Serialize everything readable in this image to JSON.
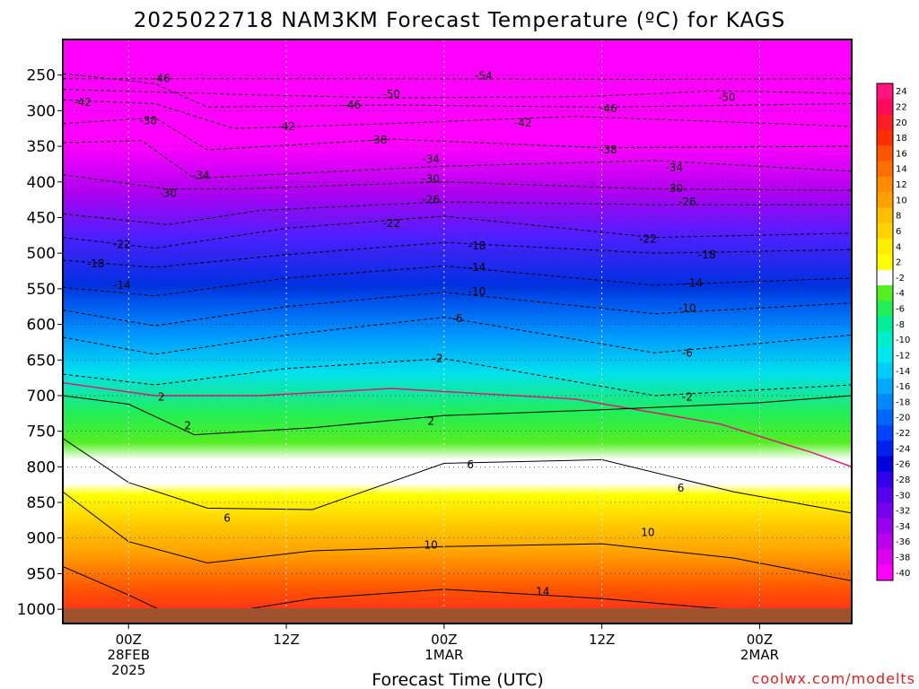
{
  "header": {
    "title": "2025022718 NAM3KM Forecast Temperature (ºC) for KAGS"
  },
  "footer": {
    "credit": "coolwx.com/modelts"
  },
  "chart_data": {
    "type": "heatmap",
    "title": "2025022718 NAM3KM Forecast Temperature (ºC) for KAGS",
    "xlabel": "Forecast Time (UTC)",
    "ylabel": "",
    "x_axis": {
      "range_hours": [
        -5,
        55
      ],
      "ticks": [
        {
          "hour": 0,
          "lines": [
            "00Z",
            "28FEB",
            "2025"
          ]
        },
        {
          "hour": 12,
          "lines": [
            "12Z"
          ]
        },
        {
          "hour": 24,
          "lines": [
            "00Z",
            "1MAR"
          ]
        },
        {
          "hour": 36,
          "lines": [
            "12Z"
          ]
        },
        {
          "hour": 48,
          "lines": [
            "00Z",
            "2MAR"
          ]
        }
      ]
    },
    "y_axis": {
      "unit": "hPa",
      "range": [
        1020,
        200
      ],
      "ticks": [
        250,
        300,
        350,
        400,
        450,
        500,
        550,
        600,
        650,
        700,
        750,
        800,
        850,
        900,
        950,
        1000
      ]
    },
    "grid": true,
    "legend": "right",
    "colorbar": {
      "labels": [
        "24",
        "22",
        "20",
        "18",
        "16",
        "14",
        "12",
        "10",
        "8",
        "6",
        "4",
        "2",
        "-2",
        "-4",
        "-6",
        "-8",
        "-10",
        "-12",
        "-14",
        "-16",
        "-18",
        "-20",
        "-22",
        "-24",
        "-26",
        "-28",
        "-30",
        "-32",
        "-34",
        "-36",
        "-38",
        "-40"
      ],
      "colors": [
        "#ff1480",
        "#ff0a5a",
        "#ff1e28",
        "#ff2d00",
        "#ff5500",
        "#ff6e00",
        "#ff8c00",
        "#ffa000",
        "#ffbe00",
        "#ffd200",
        "#ffee00",
        "#ffff00",
        "#ffffff",
        "#55ee22",
        "#22ee55",
        "#00ee99",
        "#00eecc",
        "#00e6ee",
        "#00ccff",
        "#00aaff",
        "#0088ff",
        "#0066ff",
        "#0044ff",
        "#0022ee",
        "#0000dd",
        "#3300ee",
        "#5500ee",
        "#7700ee",
        "#9900ee",
        "#bb00ee",
        "#dd00ee",
        "#ff00ff"
      ]
    },
    "contour_lines": [
      {
        "level": -54,
        "pressure": [
          255,
          255,
          256,
          255
        ],
        "hours": [
          -5,
          15,
          40,
          55
        ]
      },
      {
        "level": -50,
        "pressure": [
          270,
          278,
          282,
          280,
          272,
          276
        ],
        "hours": [
          -5,
          10,
          20,
          35,
          45,
          55
        ]
      },
      {
        "level": -46,
        "pressure": [
          248,
          262,
          295,
          292,
          295,
          290
        ],
        "hours": [
          -5,
          2,
          6,
          20,
          36,
          55
        ]
      },
      {
        "level": -42,
        "pressure": [
          285,
          290,
          325,
          318,
          308,
          322
        ],
        "hours": [
          -5,
          2,
          8,
          20,
          34,
          55
        ]
      },
      {
        "level": -38,
        "pressure": [
          318,
          310,
          355,
          340,
          352,
          350
        ],
        "hours": [
          -5,
          2,
          6,
          20,
          36,
          55
        ]
      },
      {
        "level": -34,
        "pressure": [
          345,
          342,
          395,
          378,
          370,
          385
        ],
        "hours": [
          -5,
          1,
          5,
          24,
          40,
          55
        ]
      },
      {
        "level": -30,
        "pressure": [
          390,
          410,
          410,
          400,
          410,
          412
        ],
        "hours": [
          -5,
          3,
          8,
          24,
          40,
          55
        ]
      },
      {
        "level": -26,
        "pressure": [
          445,
          460,
          440,
          428,
          432,
          432
        ],
        "hours": [
          -5,
          3,
          10,
          24,
          40,
          55
        ]
      },
      {
        "level": -22,
        "pressure": [
          478,
          493,
          465,
          448,
          478,
          472
        ],
        "hours": [
          -5,
          2,
          12,
          24,
          40,
          55
        ]
      },
      {
        "level": -18,
        "pressure": [
          510,
          520,
          502,
          485,
          500,
          495
        ],
        "hours": [
          -5,
          2,
          12,
          24,
          40,
          55
        ]
      },
      {
        "level": -14,
        "pressure": [
          548,
          560,
          535,
          518,
          545,
          535
        ],
        "hours": [
          -5,
          2,
          12,
          24,
          40,
          55
        ]
      },
      {
        "level": -10,
        "pressure": [
          580,
          602,
          575,
          555,
          585,
          570
        ],
        "hours": [
          -5,
          2,
          12,
          24,
          40,
          55
        ]
      },
      {
        "level": -6,
        "pressure": [
          618,
          642,
          615,
          590,
          640,
          615
        ],
        "hours": [
          -5,
          2,
          12,
          24,
          40,
          55
        ]
      },
      {
        "level": -2,
        "pressure": [
          670,
          685,
          662,
          648,
          700,
          685
        ],
        "hours": [
          -5,
          2,
          12,
          24,
          40,
          55
        ]
      },
      {
        "level": 0,
        "pressure": [
          682,
          700,
          700,
          690,
          705,
          740,
          780,
          800
        ],
        "hours": [
          -5,
          2,
          10,
          20,
          34,
          45,
          52,
          55
        ]
      },
      {
        "level": 2,
        "pressure": [
          700,
          712,
          755,
          745,
          728,
          720,
          710,
          700
        ],
        "hours": [
          -5,
          0,
          5,
          14,
          24,
          36,
          48,
          55
        ]
      },
      {
        "level": 6,
        "pressure": [
          760,
          822,
          858,
          860,
          795,
          790,
          835,
          865
        ],
        "hours": [
          -5,
          0,
          6,
          14,
          24,
          36,
          46,
          55
        ]
      },
      {
        "level": 10,
        "pressure": [
          835,
          905,
          935,
          918,
          912,
          908,
          928,
          960
        ],
        "hours": [
          -5,
          0,
          6,
          14,
          24,
          36,
          46,
          55
        ]
      },
      {
        "level": 14,
        "pressure": [
          940,
          980,
          1015,
          985,
          972,
          985,
          1015
        ],
        "hours": [
          -5,
          0,
          4,
          14,
          24,
          36,
          55
        ]
      }
    ],
    "contour_label_positions": [
      {
        "text": "-54",
        "hour": 27,
        "pressure": 251
      },
      {
        "text": "-50",
        "hour": 20,
        "pressure": 277
      },
      {
        "text": "-50",
        "hour": 45.5,
        "pressure": 281
      },
      {
        "text": "-46",
        "hour": 2.5,
        "pressure": 255
      },
      {
        "text": "-46",
        "hour": 17,
        "pressure": 292
      },
      {
        "text": "-46",
        "hour": 36.5,
        "pressure": 297
      },
      {
        "text": "-42",
        "hour": -3.5,
        "pressure": 288
      },
      {
        "text": "-42",
        "hour": 12,
        "pressure": 322
      },
      {
        "text": "-42",
        "hour": 30,
        "pressure": 317
      },
      {
        "text": "-38",
        "hour": 1.5,
        "pressure": 314
      },
      {
        "text": "-38",
        "hour": 19,
        "pressure": 341
      },
      {
        "text": "-38",
        "hour": 36.5,
        "pressure": 355
      },
      {
        "text": "-34",
        "hour": 5.5,
        "pressure": 391
      },
      {
        "text": "-34",
        "hour": 23,
        "pressure": 368
      },
      {
        "text": "-34",
        "hour": 41.5,
        "pressure": 380
      },
      {
        "text": "-30",
        "hour": 3,
        "pressure": 416
      },
      {
        "text": "-30",
        "hour": 23,
        "pressure": 396
      },
      {
        "text": "-30",
        "hour": 41.5,
        "pressure": 409
      },
      {
        "text": "-26",
        "hour": 23,
        "pressure": 425
      },
      {
        "text": "-26",
        "hour": 42.5,
        "pressure": 428
      },
      {
        "text": "-22",
        "hour": 20,
        "pressure": 458
      },
      {
        "text": "-22",
        "hour": -0.5,
        "pressure": 488
      },
      {
        "text": "-22",
        "hour": 39.5,
        "pressure": 480
      },
      {
        "text": "-18",
        "hour": -2.5,
        "pressure": 515
      },
      {
        "text": "-18",
        "hour": 26.5,
        "pressure": 490
      },
      {
        "text": "-18",
        "hour": 44,
        "pressure": 502
      },
      {
        "text": "-14",
        "hour": -0.5,
        "pressure": 545
      },
      {
        "text": "-14",
        "hour": 26.5,
        "pressure": 520
      },
      {
        "text": "-14",
        "hour": 43,
        "pressure": 542
      },
      {
        "text": "-10",
        "hour": 26.5,
        "pressure": 554
      },
      {
        "text": "-10",
        "hour": 42.5,
        "pressure": 577
      },
      {
        "text": "-6",
        "hour": 25,
        "pressure": 592
      },
      {
        "text": "-6",
        "hour": 42.5,
        "pressure": 640
      },
      {
        "text": "-2",
        "hour": 23.5,
        "pressure": 648
      },
      {
        "text": "-2",
        "hour": 42.5,
        "pressure": 702
      },
      {
        "text": "2",
        "hour": 2.5,
        "pressure": 702
      },
      {
        "text": "2",
        "hour": 4.5,
        "pressure": 742
      },
      {
        "text": "2",
        "hour": 23,
        "pressure": 736
      },
      {
        "text": "6",
        "hour": 26,
        "pressure": 797
      },
      {
        "text": "6",
        "hour": 42,
        "pressure": 830
      },
      {
        "text": "6",
        "hour": 7.5,
        "pressure": 872
      },
      {
        "text": "10",
        "hour": 23,
        "pressure": 910
      },
      {
        "text": "10",
        "hour": 39.5,
        "pressure": 892
      },
      {
        "text": "14",
        "hour": 31.5,
        "pressure": 975
      }
    ]
  }
}
